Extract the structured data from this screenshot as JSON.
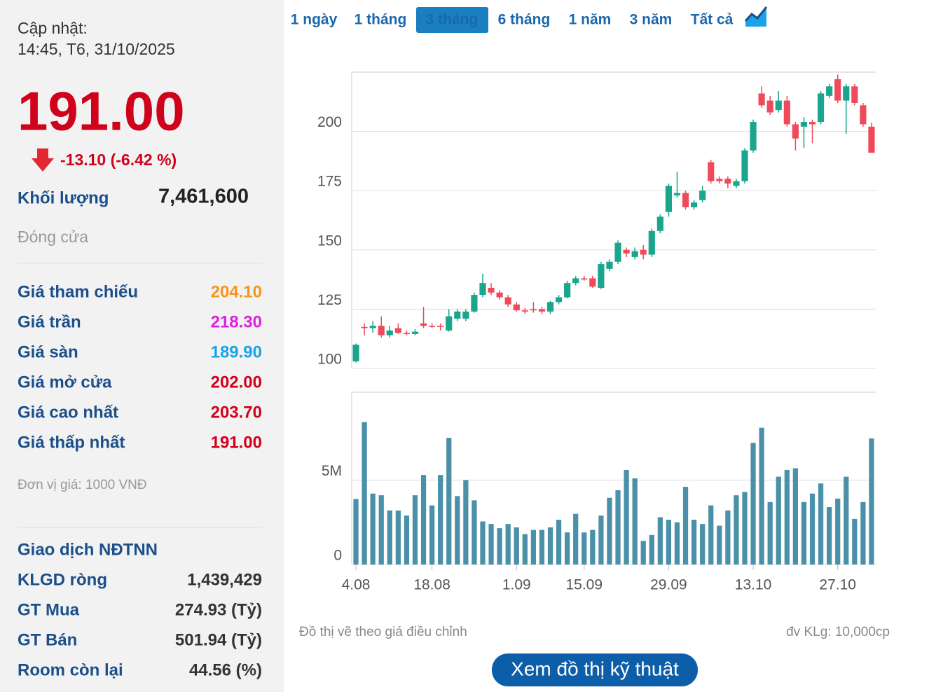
{
  "sidebar": {
    "update_label": "Cập nhật:",
    "update_time": "14:45, T6, 31/10/2025",
    "price": "191.00",
    "change": "-13.10 (-6.42 %)",
    "volume_label": "Khối lượng",
    "volume": "7,461,600",
    "status": "Đóng cửa",
    "prices": [
      {
        "label": "Giá tham chiếu",
        "value": "204.10",
        "color": "#f7941d"
      },
      {
        "label": "Giá trần",
        "value": "218.30",
        "color": "#e020e0"
      },
      {
        "label": "Giá sàn",
        "value": "189.90",
        "color": "#1aa3e8"
      },
      {
        "label": "Giá mở cửa",
        "value": "202.00",
        "color": "#d0021b"
      },
      {
        "label": "Giá cao nhất",
        "value": "203.70",
        "color": "#d0021b"
      },
      {
        "label": "Giá thấp nhất",
        "value": "191.00",
        "color": "#d0021b"
      }
    ],
    "unit": "Đơn vị giá: 1000 VNĐ",
    "foreign_title": "Giao dịch NĐTNN",
    "foreign": [
      {
        "label": "KLGD ròng",
        "value": "1,439,429"
      },
      {
        "label": "GT Mua",
        "value": "274.93 (Tỷ)"
      },
      {
        "label": "GT Bán",
        "value": "501.94 (Tỷ)"
      },
      {
        "label": "Room còn lại",
        "value": "44.56 (%)"
      }
    ]
  },
  "tabs": [
    "1 ngày",
    "1 tháng",
    "3 tháng",
    "6 tháng",
    "1 năm",
    "3 năm",
    "Tất cả"
  ],
  "active_tab": "3 tháng",
  "chart_data": [
    {
      "type": "candlestick",
      "up_color": "#1aa58c",
      "down_color": "#ef4a5b",
      "ylim": [
        100,
        225
      ],
      "yticks": [
        100,
        125,
        150,
        175,
        200
      ],
      "grid": true,
      "open": [
        103,
        117.5,
        117,
        118,
        114,
        117,
        115,
        114.5,
        119,
        118,
        118,
        116,
        121,
        121,
        124,
        131,
        134,
        132,
        130,
        127,
        124.5,
        125,
        125,
        124,
        128,
        130,
        136,
        138,
        138,
        134,
        142,
        145,
        150,
        147,
        150,
        148,
        158,
        166,
        173,
        174,
        168,
        171,
        187,
        180,
        180,
        177,
        179,
        192,
        216,
        213,
        209,
        213,
        203,
        202,
        204,
        204,
        215,
        222,
        213,
        219,
        211,
        202
      ],
      "high": [
        110.5,
        119,
        120,
        122,
        118,
        119,
        116,
        116.5,
        126,
        119,
        119,
        125,
        125,
        125,
        132,
        140,
        136,
        133,
        131,
        128,
        125.5,
        128,
        126,
        128.5,
        131,
        137,
        139,
        139,
        139,
        145,
        146,
        154,
        151,
        151,
        152,
        159,
        165,
        178,
        183,
        175,
        171,
        177,
        188,
        181,
        181,
        180,
        193,
        205,
        219,
        215,
        217,
        215,
        204,
        206,
        205,
        217,
        220,
        224,
        220,
        220,
        212,
        203.7
      ],
      "low": [
        102.5,
        114,
        115,
        113,
        113,
        114.5,
        114,
        114,
        117,
        117,
        116,
        115.5,
        120,
        120,
        123.5,
        130,
        131,
        129,
        126,
        124,
        123,
        123.5,
        123,
        123,
        127,
        129.5,
        135,
        137,
        134,
        133.5,
        141,
        144,
        147,
        146,
        146,
        147,
        157,
        164,
        172,
        167,
        167,
        170,
        178,
        178,
        176,
        176,
        178,
        191,
        210,
        207,
        208,
        202,
        192,
        193,
        195,
        203,
        214,
        212,
        199,
        211,
        202,
        191
      ],
      "close": [
        110,
        117,
        118,
        114,
        116,
        115,
        114.5,
        115.5,
        118,
        117.5,
        117.5,
        122,
        124,
        124,
        131,
        136,
        132,
        130,
        127,
        124.5,
        124,
        124.5,
        124,
        128,
        130,
        136,
        138,
        137.5,
        134.5,
        144,
        145,
        153,
        148.5,
        149.5,
        148,
        158,
        164,
        177,
        174,
        168,
        170,
        175,
        179,
        179,
        178,
        179,
        192,
        204,
        211,
        208,
        213,
        203,
        197,
        204,
        203,
        216,
        219,
        213,
        219,
        212,
        203,
        191
      ]
    },
    {
      "type": "bar",
      "color": "#4a90a8",
      "ylim": [
        0,
        10200000
      ],
      "yticks": [
        0,
        {
          "value": 5000000,
          "label": "5M"
        }
      ],
      "grid": true,
      "categories": [
        "4.08",
        null,
        null,
        null,
        null,
        null,
        null,
        null,
        null,
        "18.08",
        null,
        null,
        null,
        null,
        null,
        null,
        null,
        null,
        null,
        "1.09",
        null,
        null,
        null,
        null,
        null,
        null,
        null,
        "15.09",
        null,
        null,
        null,
        null,
        null,
        null,
        null,
        null,
        null,
        "29.09",
        null,
        null,
        null,
        null,
        null,
        null,
        null,
        null,
        null,
        "13.10",
        null,
        null,
        null,
        null,
        null,
        null,
        null,
        null,
        null,
        "27.10",
        null,
        null,
        null,
        null
      ],
      "values": [
        3880000,
        8430000,
        4200000,
        4100000,
        3200000,
        3200000,
        2900000,
        4100000,
        5300000,
        3500000,
        5300000,
        7500000,
        4050000,
        5000000,
        3800000,
        2550000,
        2400000,
        2150000,
        2400000,
        2200000,
        1800000,
        2050000,
        2050000,
        2200000,
        2650000,
        1900000,
        3000000,
        1900000,
        2050000,
        2900000,
        3950000,
        4400000,
        5600000,
        5100000,
        1400000,
        1750000,
        2800000,
        2650000,
        2500000,
        4600000,
        2650000,
        2400000,
        3500000,
        2300000,
        3200000,
        4100000,
        4300000,
        7200000,
        8100000,
        3700000,
        5200000,
        5600000,
        5700000,
        3700000,
        4200000,
        4800000,
        3400000,
        3900000,
        5200000,
        2700000,
        3700000,
        7461600
      ]
    }
  ],
  "note": "Đồ thị vẽ theo giá điều chỉnh",
  "volume_unit": "đv KLg: 10,000cp",
  "button": "Xem đồ thị kỹ thuật"
}
